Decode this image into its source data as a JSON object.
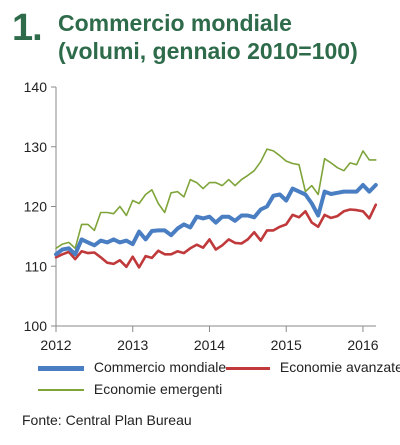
{
  "title": {
    "number": "1.",
    "line1": "Commercio mondiale",
    "line2": "(volumi, gennaio 2010=100)"
  },
  "source": "Fonte: Central Plan Bureau",
  "colors": {
    "title": "#2e6b4a",
    "commercio": "#4a7ec2",
    "avanzate": "#c0393b",
    "emergenti": "#7ea43a",
    "axis": "#8a8a8a"
  },
  "chart_data": {
    "type": "line",
    "xlabel": "",
    "ylabel": "",
    "xlim": [
      2012,
      2016.17
    ],
    "ylim": [
      100,
      140
    ],
    "x_ticks": [
      "2012",
      "2013",
      "2014",
      "2015",
      "2016"
    ],
    "y_ticks": [
      "100",
      "110",
      "120",
      "130",
      "140"
    ],
    "grid": false,
    "legend_position": "bottom",
    "x": [
      2012.0,
      2012.083,
      2012.167,
      2012.25,
      2012.333,
      2012.417,
      2012.5,
      2012.583,
      2012.667,
      2012.75,
      2012.833,
      2012.917,
      2013.0,
      2013.083,
      2013.167,
      2013.25,
      2013.333,
      2013.417,
      2013.5,
      2013.583,
      2013.667,
      2013.75,
      2013.833,
      2013.917,
      2014.0,
      2014.083,
      2014.167,
      2014.25,
      2014.333,
      2014.417,
      2014.5,
      2014.583,
      2014.667,
      2014.75,
      2014.833,
      2014.917,
      2015.0,
      2015.083,
      2015.167,
      2015.25,
      2015.333,
      2015.417,
      2015.5,
      2015.583,
      2015.667,
      2015.75,
      2015.833,
      2015.917,
      2016.0,
      2016.083,
      2016.167
    ],
    "series": [
      {
        "name": "Commercio mondiale",
        "values": [
          112.0,
          112.8,
          113.0,
          112.0,
          114.5,
          114.0,
          113.5,
          114.3,
          114.0,
          114.5,
          114.0,
          114.3,
          113.7,
          115.8,
          114.5,
          115.9,
          116.0,
          116.0,
          115.2,
          116.3,
          117.0,
          116.5,
          118.3,
          118.0,
          118.3,
          117.3,
          118.3,
          118.3,
          117.6,
          118.5,
          118.5,
          118.2,
          119.5,
          120.0,
          121.8,
          122.0,
          121.0,
          123.0,
          122.5,
          122.0,
          120.5,
          118.5,
          122.5,
          122.1,
          122.3,
          122.5,
          122.5,
          122.5,
          123.6,
          122.5,
          123.6
        ]
      },
      {
        "name": "Economie avanzate",
        "values": [
          111.5,
          112.0,
          112.4,
          111.2,
          112.5,
          112.2,
          112.3,
          111.5,
          110.6,
          110.4,
          111.0,
          109.9,
          111.6,
          109.8,
          111.7,
          111.4,
          112.6,
          112.0,
          112.0,
          112.5,
          112.2,
          113.0,
          113.6,
          113.1,
          114.5,
          112.8,
          113.5,
          114.5,
          113.9,
          113.8,
          114.5,
          115.7,
          114.3,
          116.0,
          116.0,
          116.6,
          117.0,
          118.6,
          118.2,
          119.2,
          117.3,
          116.6,
          118.6,
          118.1,
          118.4,
          119.2,
          119.5,
          119.4,
          119.2,
          118.0,
          120.3
        ]
      },
      {
        "name": "Economie emergenti",
        "values": [
          113.0,
          113.7,
          114.0,
          113.0,
          117.0,
          117.0,
          116.0,
          119.0,
          119.0,
          118.8,
          120.0,
          118.5,
          121.0,
          120.5,
          122.0,
          122.8,
          120.5,
          119.0,
          122.3,
          122.5,
          121.6,
          124.5,
          124.0,
          123.0,
          124.0,
          124.0,
          123.5,
          124.5,
          123.5,
          124.5,
          125.2,
          126.0,
          127.5,
          129.6,
          129.3,
          128.5,
          127.6,
          127.2,
          127.0,
          122.5,
          123.5,
          122.0,
          128.0,
          127.3,
          126.5,
          126.0,
          127.3,
          127.0,
          129.3,
          127.8,
          127.8
        ]
      }
    ]
  }
}
